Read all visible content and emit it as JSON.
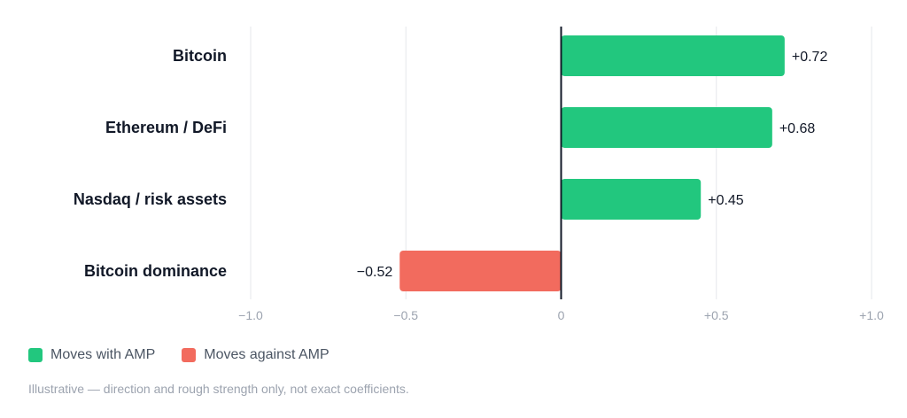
{
  "chart_data": {
    "type": "bar",
    "orientation": "horizontal",
    "categories": [
      "Bitcoin",
      "Ethereum / DeFi",
      "Nasdaq / risk assets",
      "Bitcoin dominance"
    ],
    "values": [
      0.72,
      0.68,
      0.45,
      -0.52
    ],
    "value_labels": [
      "+0.72",
      "+0.68",
      "+0.45",
      "−0.52"
    ],
    "xlim": [
      -1.0,
      1.0
    ],
    "x_ticks": [
      -1.0,
      -0.5,
      0,
      0.5,
      1.0
    ],
    "x_tick_labels": [
      "−1.0",
      "−0.5",
      "0",
      "+0.5",
      "+1.0"
    ],
    "grid": true,
    "legend_position": "bottom-left",
    "colors": {
      "positive": "#22c77e",
      "negative": "#f26b5e",
      "zero_line": "#111827",
      "grid": "#e5e7eb"
    }
  },
  "legend": {
    "items": [
      {
        "label": "Moves with AMP",
        "color": "#22c77e"
      },
      {
        "label": "Moves against AMP",
        "color": "#f26b5e"
      }
    ]
  },
  "note": "Illustrative — direction and rough strength only, not exact coefficients."
}
